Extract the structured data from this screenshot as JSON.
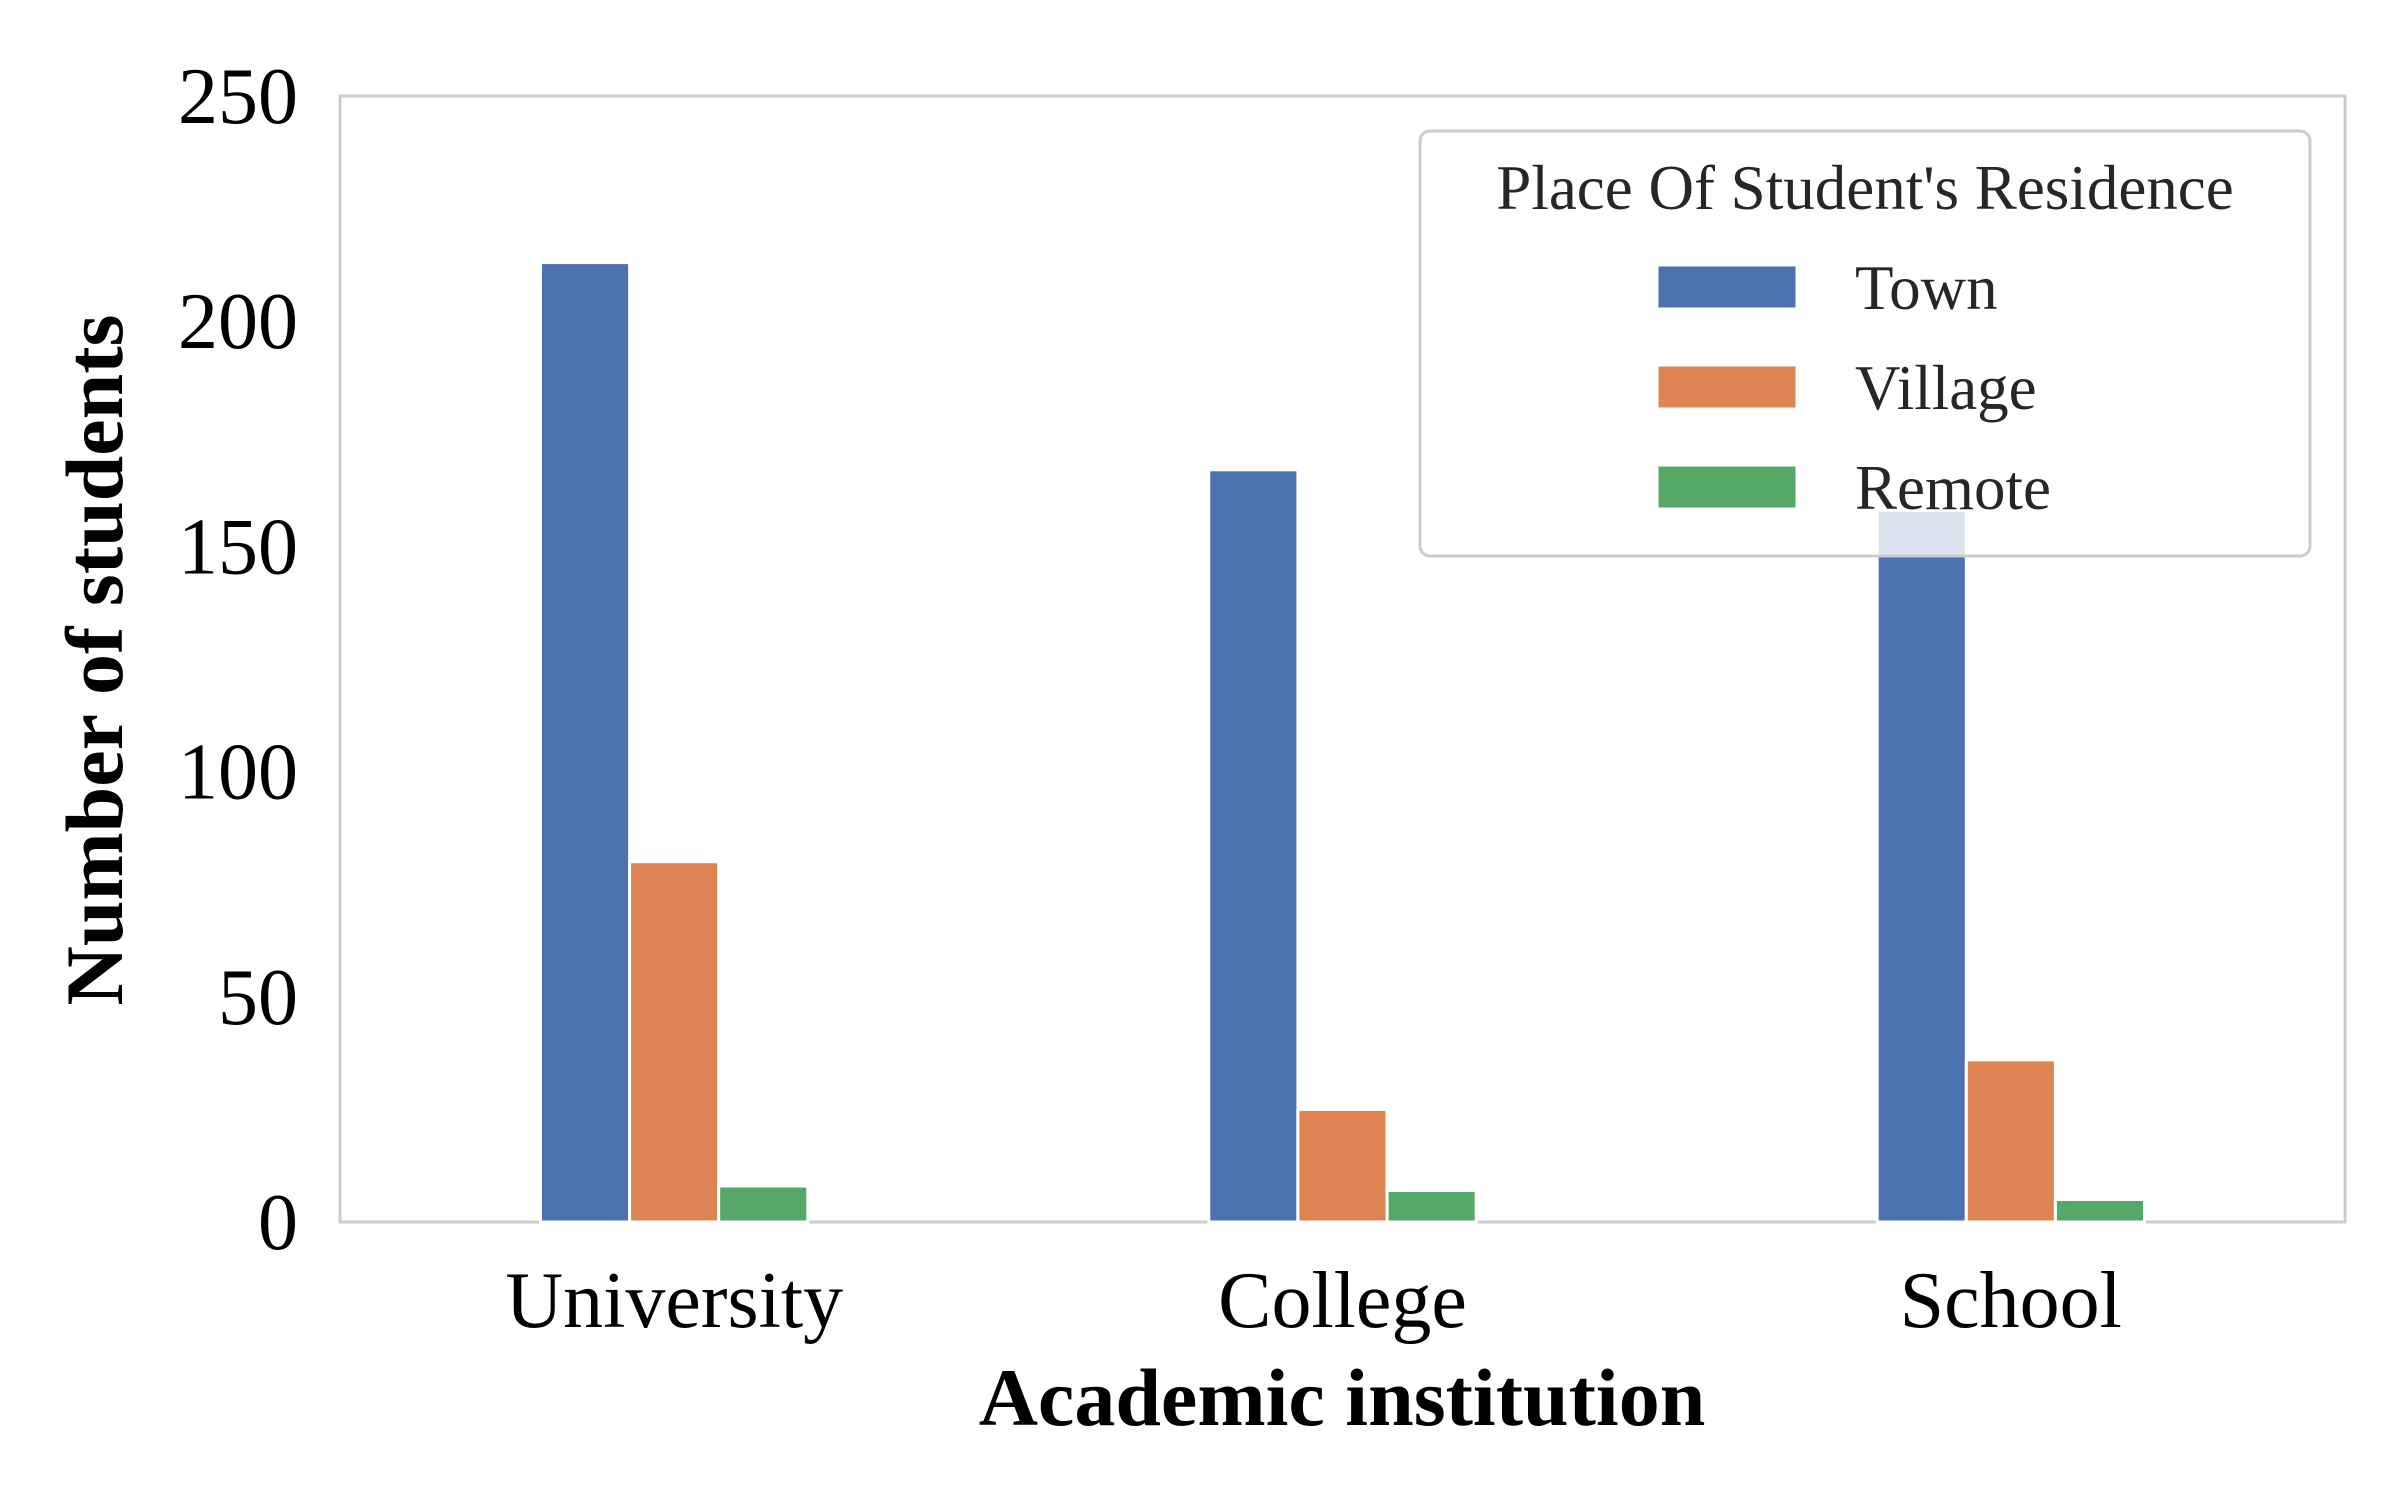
{
  "chart_data": {
    "type": "bar",
    "title": "",
    "xlabel": "Academic institution",
    "ylabel": "Number of students",
    "categories": [
      "University",
      "College",
      "School"
    ],
    "series": [
      {
        "name": "Town",
        "color": "#4c72b0",
        "values": [
          213,
          167,
          158
        ]
      },
      {
        "name": "Village",
        "color": "#dd8452",
        "values": [
          80,
          25,
          36
        ]
      },
      {
        "name": "Remote",
        "color": "#55a868",
        "values": [
          8,
          7,
          5
        ]
      }
    ],
    "ylim": [
      0,
      250
    ],
    "yticks": [
      0,
      50,
      100,
      150,
      200,
      250
    ],
    "grid": false,
    "legend": {
      "title": "Place Of Student's Residence",
      "placement": "top-right"
    }
  }
}
